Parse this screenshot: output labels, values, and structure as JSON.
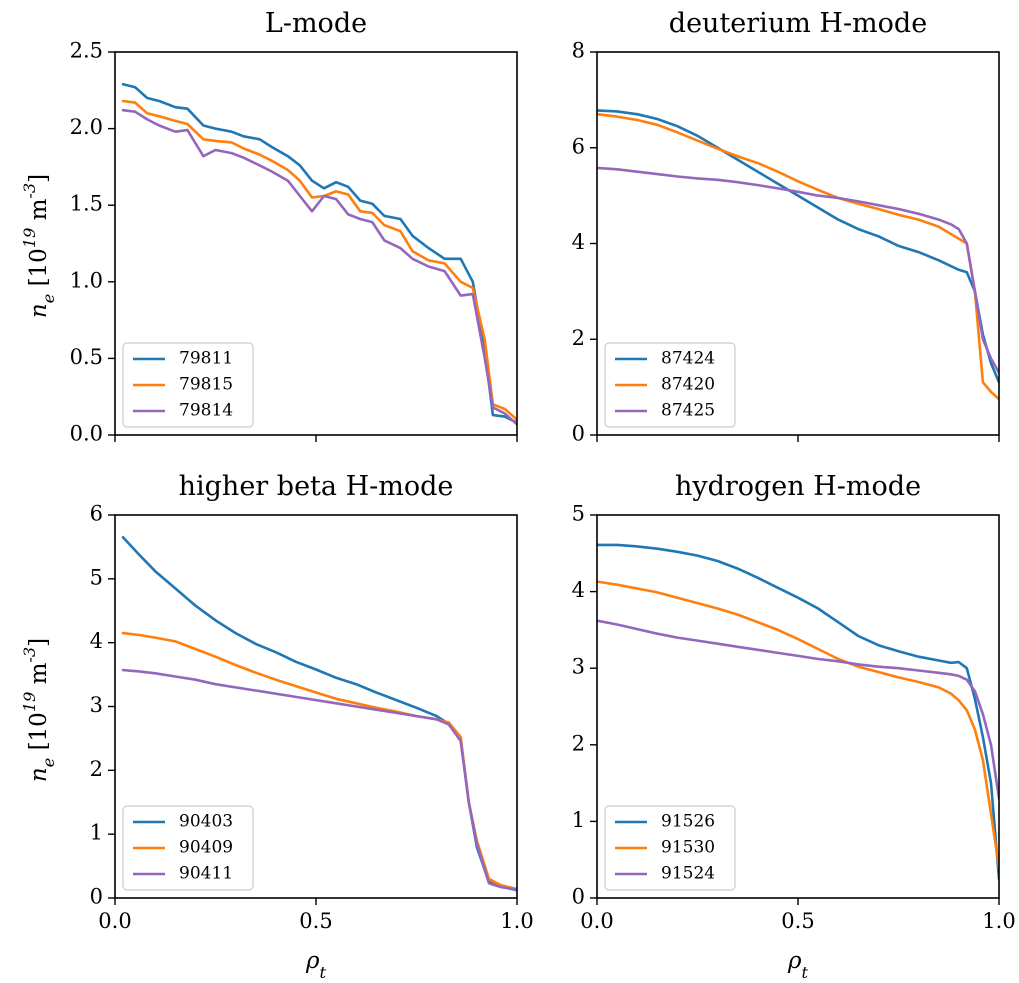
{
  "figure": {
    "ylabel": "n_e [10^19 m^-3]",
    "xlabel": "ρ_t"
  },
  "chart_data": [
    {
      "type": "line",
      "title": "L-mode",
      "xlim": [
        0,
        1
      ],
      "ylim": [
        0,
        2.5
      ],
      "xticks": [
        "0.0",
        "0.5",
        "1.0"
      ],
      "yticks": [
        "0.0",
        "0.5",
        "1.0",
        "1.5",
        "2.0",
        "2.5"
      ],
      "ytick_values": [
        0,
        0.5,
        1.0,
        1.5,
        2.0,
        2.5
      ],
      "show_xticklabels": false,
      "show_ylabel": true,
      "show_xlabel": false,
      "legend": "lower-left",
      "series": [
        {
          "name": "79811",
          "color": "#1f77b4",
          "x": [
            0.02,
            0.05,
            0.08,
            0.11,
            0.15,
            0.18,
            0.22,
            0.25,
            0.29,
            0.32,
            0.36,
            0.39,
            0.43,
            0.46,
            0.49,
            0.52,
            0.55,
            0.58,
            0.61,
            0.64,
            0.67,
            0.71,
            0.74,
            0.78,
            0.82,
            0.86,
            0.89,
            0.92,
            0.94,
            0.97,
            1.0
          ],
          "y": [
            2.29,
            2.27,
            2.2,
            2.18,
            2.14,
            2.13,
            2.02,
            2.0,
            1.98,
            1.95,
            1.93,
            1.88,
            1.82,
            1.76,
            1.66,
            1.61,
            1.65,
            1.62,
            1.53,
            1.51,
            1.43,
            1.41,
            1.3,
            1.22,
            1.15,
            1.15,
            1.0,
            0.55,
            0.13,
            0.12,
            0.08
          ]
        },
        {
          "name": "79815",
          "color": "#ff7f0e",
          "x": [
            0.02,
            0.05,
            0.08,
            0.11,
            0.15,
            0.18,
            0.22,
            0.25,
            0.29,
            0.32,
            0.36,
            0.39,
            0.43,
            0.46,
            0.49,
            0.52,
            0.55,
            0.58,
            0.61,
            0.64,
            0.67,
            0.71,
            0.74,
            0.78,
            0.82,
            0.86,
            0.89,
            0.92,
            0.94,
            0.97,
            1.0
          ],
          "y": [
            2.18,
            2.17,
            2.1,
            2.08,
            2.05,
            2.03,
            1.93,
            1.92,
            1.91,
            1.87,
            1.83,
            1.79,
            1.73,
            1.66,
            1.55,
            1.56,
            1.59,
            1.57,
            1.46,
            1.45,
            1.37,
            1.33,
            1.2,
            1.14,
            1.12,
            1.0,
            0.96,
            0.62,
            0.2,
            0.17,
            0.1
          ]
        },
        {
          "name": "79814",
          "color": "#9467bd",
          "x": [
            0.02,
            0.05,
            0.08,
            0.11,
            0.15,
            0.18,
            0.22,
            0.25,
            0.29,
            0.32,
            0.36,
            0.39,
            0.43,
            0.46,
            0.49,
            0.52,
            0.55,
            0.58,
            0.61,
            0.64,
            0.67,
            0.71,
            0.74,
            0.78,
            0.82,
            0.86,
            0.89,
            0.92,
            0.94,
            0.97,
            1.0
          ],
          "y": [
            2.12,
            2.11,
            2.06,
            2.02,
            1.98,
            1.99,
            1.82,
            1.86,
            1.84,
            1.81,
            1.76,
            1.72,
            1.66,
            1.56,
            1.46,
            1.56,
            1.54,
            1.44,
            1.41,
            1.39,
            1.27,
            1.22,
            1.15,
            1.1,
            1.07,
            0.91,
            0.92,
            0.5,
            0.18,
            0.14,
            0.07
          ]
        }
      ]
    },
    {
      "type": "line",
      "title": "deuterium H-mode",
      "xlim": [
        0,
        1
      ],
      "ylim": [
        0,
        8
      ],
      "xticks": [
        "0.0",
        "0.5",
        "1.0"
      ],
      "yticks": [
        "0",
        "2",
        "4",
        "6",
        "8"
      ],
      "ytick_values": [
        0,
        2,
        4,
        6,
        8
      ],
      "show_xticklabels": false,
      "show_ylabel": false,
      "show_xlabel": false,
      "legend": "lower-left",
      "series": [
        {
          "name": "87424",
          "color": "#1f77b4",
          "x": [
            0.0,
            0.05,
            0.1,
            0.15,
            0.2,
            0.25,
            0.3,
            0.35,
            0.4,
            0.45,
            0.5,
            0.55,
            0.6,
            0.65,
            0.7,
            0.75,
            0.8,
            0.85,
            0.9,
            0.92,
            0.94,
            0.96,
            0.98,
            1.0
          ],
          "y": [
            6.78,
            6.76,
            6.7,
            6.6,
            6.45,
            6.25,
            6.0,
            5.75,
            5.5,
            5.25,
            5.0,
            4.75,
            4.5,
            4.3,
            4.15,
            3.95,
            3.82,
            3.65,
            3.45,
            3.4,
            3.0,
            2.1,
            1.5,
            1.1
          ]
        },
        {
          "name": "87420",
          "color": "#ff7f0e",
          "x": [
            0.0,
            0.05,
            0.1,
            0.15,
            0.2,
            0.25,
            0.3,
            0.35,
            0.4,
            0.45,
            0.5,
            0.55,
            0.6,
            0.65,
            0.7,
            0.75,
            0.8,
            0.85,
            0.9,
            0.92,
            0.94,
            0.96,
            0.98,
            1.0
          ],
          "y": [
            6.7,
            6.65,
            6.58,
            6.48,
            6.32,
            6.15,
            5.98,
            5.82,
            5.68,
            5.5,
            5.3,
            5.12,
            4.95,
            4.83,
            4.72,
            4.6,
            4.5,
            4.35,
            4.1,
            4.0,
            3.0,
            1.1,
            0.9,
            0.75
          ]
        },
        {
          "name": "87425",
          "color": "#9467bd",
          "x": [
            0.0,
            0.05,
            0.1,
            0.15,
            0.2,
            0.25,
            0.3,
            0.35,
            0.4,
            0.45,
            0.5,
            0.55,
            0.6,
            0.65,
            0.7,
            0.75,
            0.8,
            0.85,
            0.88,
            0.9,
            0.92,
            0.94,
            0.96,
            0.98,
            1.0
          ],
          "y": [
            5.58,
            5.55,
            5.5,
            5.45,
            5.4,
            5.36,
            5.33,
            5.28,
            5.22,
            5.15,
            5.08,
            5.0,
            4.95,
            4.88,
            4.8,
            4.72,
            4.62,
            4.5,
            4.4,
            4.3,
            4.0,
            3.0,
            2.0,
            1.6,
            1.3
          ]
        }
      ]
    },
    {
      "type": "line",
      "title": "higher beta H-mode",
      "xlim": [
        0,
        1
      ],
      "ylim": [
        0,
        6
      ],
      "xticks": [
        "0.0",
        "0.5",
        "1.0"
      ],
      "yticks": [
        "0",
        "1",
        "2",
        "3",
        "4",
        "5",
        "6"
      ],
      "ytick_values": [
        0,
        1,
        2,
        3,
        4,
        5,
        6
      ],
      "show_xticklabels": true,
      "show_ylabel": true,
      "show_xlabel": true,
      "legend": "lower-left",
      "series": [
        {
          "name": "90403",
          "color": "#1f77b4",
          "x": [
            0.02,
            0.06,
            0.1,
            0.15,
            0.2,
            0.25,
            0.3,
            0.35,
            0.4,
            0.45,
            0.5,
            0.55,
            0.6,
            0.65,
            0.7,
            0.75,
            0.8,
            0.83,
            0.86,
            0.88,
            0.9,
            0.93,
            0.96,
            1.0
          ],
          "y": [
            5.65,
            5.38,
            5.12,
            4.85,
            4.58,
            4.35,
            4.15,
            3.98,
            3.85,
            3.7,
            3.58,
            3.45,
            3.35,
            3.22,
            3.1,
            2.98,
            2.85,
            2.73,
            2.48,
            1.5,
            0.8,
            0.25,
            0.18,
            0.12
          ]
        },
        {
          "name": "90409",
          "color": "#ff7f0e",
          "x": [
            0.02,
            0.06,
            0.1,
            0.15,
            0.2,
            0.25,
            0.3,
            0.35,
            0.4,
            0.45,
            0.5,
            0.55,
            0.6,
            0.65,
            0.7,
            0.75,
            0.8,
            0.83,
            0.86,
            0.88,
            0.9,
            0.93,
            0.96,
            1.0
          ],
          "y": [
            4.15,
            4.12,
            4.08,
            4.02,
            3.9,
            3.78,
            3.65,
            3.53,
            3.42,
            3.32,
            3.22,
            3.12,
            3.05,
            2.98,
            2.92,
            2.85,
            2.8,
            2.75,
            2.52,
            1.5,
            0.9,
            0.3,
            0.2,
            0.14
          ]
        },
        {
          "name": "90411",
          "color": "#9467bd",
          "x": [
            0.02,
            0.06,
            0.1,
            0.15,
            0.2,
            0.25,
            0.3,
            0.35,
            0.4,
            0.45,
            0.5,
            0.55,
            0.6,
            0.65,
            0.7,
            0.75,
            0.8,
            0.83,
            0.86,
            0.88,
            0.9,
            0.93,
            0.96,
            1.0
          ],
          "y": [
            3.57,
            3.55,
            3.52,
            3.47,
            3.42,
            3.35,
            3.3,
            3.25,
            3.2,
            3.15,
            3.1,
            3.05,
            3.0,
            2.95,
            2.9,
            2.85,
            2.8,
            2.72,
            2.46,
            1.5,
            0.85,
            0.23,
            0.17,
            0.13
          ]
        }
      ]
    },
    {
      "type": "line",
      "title": "hydrogen H-mode",
      "xlim": [
        0,
        1
      ],
      "ylim": [
        0,
        5
      ],
      "xticks": [
        "0.0",
        "0.5",
        "1.0"
      ],
      "yticks": [
        "0",
        "1",
        "2",
        "3",
        "4",
        "5"
      ],
      "ytick_values": [
        0,
        1,
        2,
        3,
        4,
        5
      ],
      "show_xticklabels": true,
      "show_ylabel": false,
      "show_xlabel": true,
      "legend": "lower-left",
      "series": [
        {
          "name": "91526",
          "color": "#1f77b4",
          "x": [
            0.0,
            0.05,
            0.1,
            0.15,
            0.2,
            0.25,
            0.3,
            0.35,
            0.4,
            0.45,
            0.5,
            0.55,
            0.6,
            0.65,
            0.7,
            0.75,
            0.8,
            0.85,
            0.88,
            0.9,
            0.92,
            0.94,
            0.96,
            0.98,
            1.0
          ],
          "y": [
            4.61,
            4.61,
            4.59,
            4.56,
            4.52,
            4.47,
            4.4,
            4.3,
            4.18,
            4.05,
            3.92,
            3.78,
            3.6,
            3.42,
            3.3,
            3.22,
            3.15,
            3.1,
            3.07,
            3.08,
            3.0,
            2.6,
            2.1,
            1.5,
            0.25
          ]
        },
        {
          "name": "91530",
          "color": "#ff7f0e",
          "x": [
            0.0,
            0.05,
            0.1,
            0.15,
            0.2,
            0.25,
            0.3,
            0.35,
            0.4,
            0.45,
            0.5,
            0.55,
            0.6,
            0.65,
            0.7,
            0.75,
            0.8,
            0.85,
            0.88,
            0.9,
            0.92,
            0.94,
            0.96,
            0.98,
            1.0
          ],
          "y": [
            4.13,
            4.09,
            4.04,
            3.99,
            3.92,
            3.85,
            3.78,
            3.7,
            3.6,
            3.5,
            3.38,
            3.25,
            3.12,
            3.02,
            2.95,
            2.88,
            2.82,
            2.75,
            2.67,
            2.58,
            2.45,
            2.2,
            1.8,
            1.1,
            0.4
          ]
        },
        {
          "name": "91524",
          "color": "#9467bd",
          "x": [
            0.0,
            0.05,
            0.1,
            0.15,
            0.2,
            0.25,
            0.3,
            0.35,
            0.4,
            0.45,
            0.5,
            0.55,
            0.6,
            0.65,
            0.7,
            0.75,
            0.8,
            0.85,
            0.88,
            0.9,
            0.92,
            0.94,
            0.96,
            0.98,
            1.0
          ],
          "y": [
            3.62,
            3.57,
            3.51,
            3.45,
            3.4,
            3.36,
            3.32,
            3.28,
            3.24,
            3.2,
            3.16,
            3.12,
            3.09,
            3.05,
            3.02,
            3.0,
            2.97,
            2.94,
            2.92,
            2.9,
            2.85,
            2.7,
            2.4,
            2.0,
            1.3
          ]
        }
      ]
    }
  ]
}
